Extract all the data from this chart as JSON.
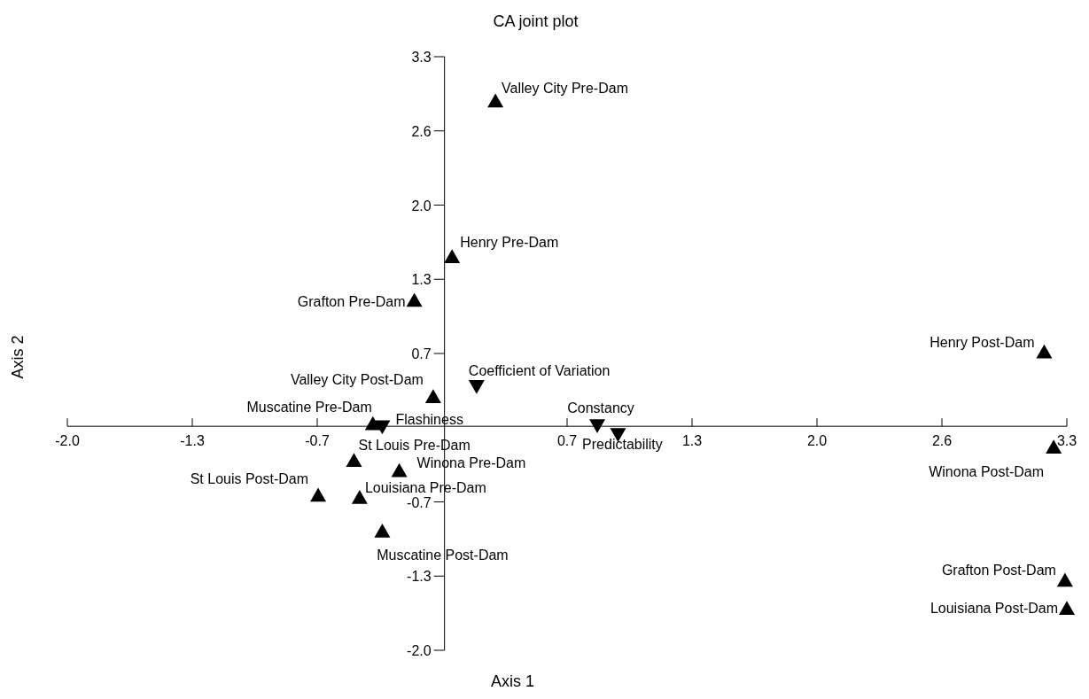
{
  "chart_data": {
    "type": "scatter",
    "title": "CA joint plot",
    "xlabel": "Axis 1",
    "ylabel": "Axis 2",
    "xlim": [
      -2.0,
      3.3
    ],
    "ylim": [
      -2.0,
      3.3
    ],
    "xticks": [
      {
        "value": -2.0,
        "label": "-2.0"
      },
      {
        "value": -1.3375,
        "label": "-1.3"
      },
      {
        "value": -0.675,
        "label": "-0.7"
      },
      {
        "value": 0.65,
        "label": "0.7"
      },
      {
        "value": 1.3125,
        "label": "1.3"
      },
      {
        "value": 1.975,
        "label": "2.0"
      },
      {
        "value": 2.6375,
        "label": "2.6"
      },
      {
        "value": 3.3,
        "label": "3.3"
      }
    ],
    "yticks": [
      {
        "value": -2.0,
        "label": "-2.0"
      },
      {
        "value": -1.3375,
        "label": "-1.3"
      },
      {
        "value": -0.675,
        "label": "-0.7"
      },
      {
        "value": 0.65,
        "label": "0.7"
      },
      {
        "value": 1.3125,
        "label": "1.3"
      },
      {
        "value": 1.975,
        "label": "2.0"
      },
      {
        "value": 2.6375,
        "label": "2.6"
      },
      {
        "value": 3.3,
        "label": "3.3"
      }
    ],
    "series": [
      {
        "color": "#000000",
        "marker": "triangle",
        "x": [
          0.27,
          0.04,
          -0.16,
          3.18,
          -0.06,
          -0.38,
          3.23,
          -0.48,
          -0.24,
          -0.67,
          -0.45,
          -0.33,
          3.29,
          3.3
        ],
        "values": [
          2.9,
          1.51,
          1.12,
          0.66,
          0.26,
          0.02,
          -0.19,
          -0.31,
          -0.4,
          -0.62,
          -0.64,
          -0.94,
          -1.38,
          -1.63
        ]
      },
      {
        "color": "#000000",
        "marker": "triangle-down",
        "x": [
          0.17,
          -0.33,
          0.81,
          0.92
        ],
        "values": [
          0.36,
          0.0,
          0.01,
          -0.07
        ]
      }
    ],
    "annotations": [
      {
        "text": "Valley City Pre-Dam",
        "x": 0.27,
        "y": 2.9
      },
      {
        "text": "Henry Pre-Dam",
        "x": 0.04,
        "y": 1.51
      },
      {
        "text": "Grafton Pre-Dam",
        "x": -0.16,
        "y": 1.12
      },
      {
        "text": "Henry Post-Dam",
        "x": 3.18,
        "y": 0.66
      },
      {
        "text": "Valley City Post-Dam",
        "x": -0.06,
        "y": 0.26
      },
      {
        "text": "Coefficient of Variation",
        "x": 0.17,
        "y": 0.36
      },
      {
        "text": "Muscatine Pre-Dam",
        "x": -0.38,
        "y": 0.02
      },
      {
        "text": "Flashiness",
        "x": -0.33,
        "y": 0.0
      },
      {
        "text": "Constancy",
        "x": 0.81,
        "y": 0.01
      },
      {
        "text": "Predictability",
        "x": 0.92,
        "y": -0.07
      },
      {
        "text": "Winona Post-Dam",
        "x": 3.23,
        "y": -0.19
      },
      {
        "text": "St Louis Pre-Dam",
        "x": -0.48,
        "y": -0.31
      },
      {
        "text": "Winona Pre-Dam",
        "x": -0.24,
        "y": -0.4
      },
      {
        "text": "St Louis Post-Dam",
        "x": -0.67,
        "y": -0.62
      },
      {
        "text": "Louisiana Pre-Dam",
        "x": -0.45,
        "y": -0.64
      },
      {
        "text": "Muscatine Post-Dam",
        "x": -0.33,
        "y": -0.94
      },
      {
        "text": "Grafton Post-Dam",
        "x": 3.29,
        "y": -1.38
      },
      {
        "text": "Louisiana Post-Dam",
        "x": 3.3,
        "y": -1.63
      }
    ]
  }
}
